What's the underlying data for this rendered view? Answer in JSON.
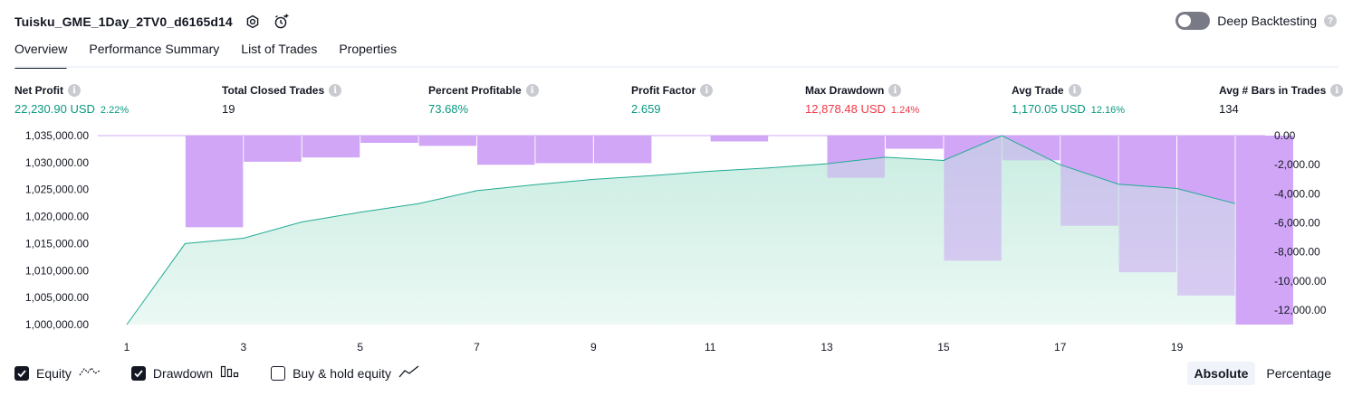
{
  "header": {
    "title": "Tuisku_GME_1Day_2TV0_d6165d14",
    "deep_backtesting_label": "Deep Backtesting",
    "deep_backtesting_on": false
  },
  "tabs": [
    {
      "label": "Overview",
      "active": true
    },
    {
      "label": "Performance Summary",
      "active": false
    },
    {
      "label": "List of Trades",
      "active": false
    },
    {
      "label": "Properties",
      "active": false
    }
  ],
  "stats": [
    {
      "label": "Net Profit",
      "value": "22,230.90 USD",
      "pct": "2.22%",
      "color": "green"
    },
    {
      "label": "Total Closed Trades",
      "value": "19",
      "pct": "",
      "color": "dark"
    },
    {
      "label": "Percent Profitable",
      "value": "73.68%",
      "pct": "",
      "color": "green"
    },
    {
      "label": "Profit Factor",
      "value": "2.659",
      "pct": "",
      "color": "green"
    },
    {
      "label": "Max Drawdown",
      "value": "12,878.48 USD",
      "pct": "1.24%",
      "color": "red"
    },
    {
      "label": "Avg Trade",
      "value": "1,170.05 USD",
      "pct": "12.16%",
      "color": "green"
    },
    {
      "label": "Avg # Bars in Trades",
      "value": "134",
      "pct": "",
      "color": "dark"
    }
  ],
  "chart_data": {
    "type": "area",
    "x_ticks": [
      "1",
      "3",
      "5",
      "7",
      "9",
      "11",
      "13",
      "15",
      "17",
      "19"
    ],
    "left_axis": {
      "ticks": [
        "1,000,000.00",
        "1,005,000.00",
        "1,010,000.00",
        "1,015,000.00",
        "1,020,000.00",
        "1,025,000.00",
        "1,030,000.00",
        "1,035,000.00"
      ],
      "range": [
        1000000,
        1035000
      ]
    },
    "right_axis": {
      "ticks": [
        "0.00",
        "-2,000.00",
        "-4,000.00",
        "-6,000.00",
        "-8,000.00",
        "-10,000.00",
        "-12,000.00"
      ],
      "range": [
        -13000,
        0
      ]
    },
    "x": [
      1,
      2,
      3,
      4,
      5,
      6,
      7,
      8,
      9,
      10,
      11,
      12,
      13,
      14,
      15,
      16,
      17,
      18,
      19,
      20
    ],
    "equity": [
      1000000,
      1015000,
      1016000,
      1019000,
      1020800,
      1022400,
      1024800,
      1025900,
      1026900,
      1027600,
      1028400,
      1029000,
      1029800,
      1031000,
      1030400,
      1035000,
      1029600,
      1026000,
      1025200,
      1022400
    ],
    "drawdown": [
      0,
      -6300,
      -1800,
      -1500,
      -500,
      -700,
      -2000,
      -1900,
      -1900,
      0,
      -400,
      0,
      -2900,
      -900,
      -8600,
      -1700,
      -6200,
      -9400,
      -11000,
      -13000
    ],
    "colors": {
      "equity_line": "#22ab94",
      "equity_fill": "#c8eee3",
      "drawdown": "#d1a7f7"
    }
  },
  "legend": [
    {
      "label": "Equity",
      "checked": true,
      "icon": "equity-line-icon"
    },
    {
      "label": "Drawdown",
      "checked": true,
      "icon": "drawdown-bars-icon"
    },
    {
      "label": "Buy & hold equity",
      "checked": false,
      "icon": "buy-hold-line-icon"
    }
  ],
  "modes": [
    {
      "label": "Absolute",
      "active": true
    },
    {
      "label": "Percentage",
      "active": false
    }
  ]
}
